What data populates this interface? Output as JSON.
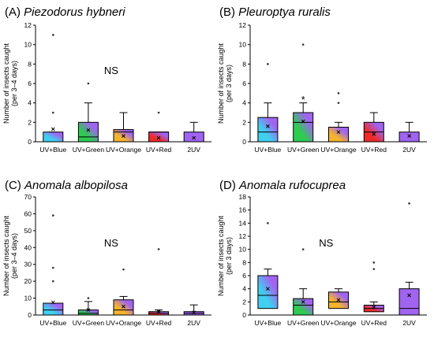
{
  "chart_data": [
    {
      "type": "box",
      "panel": "(A)",
      "title": "Piezodorus hybneri",
      "ylabel": [
        "Number of insects caught",
        "(per 3–4 days)"
      ],
      "ylim": [
        0,
        12
      ],
      "yticks": [
        0,
        2,
        4,
        6,
        8,
        10,
        12
      ],
      "annotation": "NS",
      "categories": [
        "UV+Blue",
        "UV+Green",
        "UV+Orange",
        "UV+Red",
        "2UV"
      ],
      "boxes": [
        {
          "q1": 0,
          "median": 0,
          "q3": 1,
          "whisker_low": 0,
          "whisker_high": 1,
          "mean": 1.3,
          "outliers": [
            11,
            3
          ],
          "colors": [
            "#3fd0f0",
            "#a064f0"
          ]
        },
        {
          "q1": 0,
          "median": 0.5,
          "q3": 2,
          "whisker_low": 0,
          "whisker_high": 4,
          "mean": 1.2,
          "outliers": [
            6
          ],
          "colors": [
            "#2ccc50",
            "#a064f0"
          ]
        },
        {
          "q1": 0,
          "median": 1,
          "q3": 1.25,
          "whisker_low": 0,
          "whisker_high": 3,
          "mean": 0.6,
          "outliers": [],
          "colors": [
            "#f5b42c",
            "#a064f0"
          ]
        },
        {
          "q1": 0,
          "median": 1,
          "q3": 1,
          "whisker_low": 0,
          "whisker_high": 1,
          "mean": 0.4,
          "outliers": [
            3
          ],
          "colors": [
            "#ee2a2a",
            "#a064f0"
          ]
        },
        {
          "q1": 0,
          "median": 0,
          "q3": 1,
          "whisker_low": 0,
          "whisker_high": 2,
          "mean": 0.4,
          "outliers": [],
          "colors": [
            "#a064f0",
            "#a064f0"
          ]
        }
      ]
    },
    {
      "type": "box",
      "panel": "(B)",
      "title": "Pleuroptya ruralis",
      "ylabel": [
        "Number of insects caught",
        "(per 3 days)"
      ],
      "ylim": [
        0,
        12
      ],
      "yticks": [
        0,
        2,
        4,
        6,
        8,
        10,
        12
      ],
      "annotation": "*",
      "categories": [
        "UV+Blue",
        "UV+Green",
        "UV+Orange",
        "UV+Red",
        "2UV"
      ],
      "boxes": [
        {
          "q1": 0,
          "median": 1,
          "q3": 2.5,
          "whisker_low": 0,
          "whisker_high": 4,
          "mean": 1.6,
          "outliers": [
            8
          ],
          "colors": [
            "#3fd0f0",
            "#a064f0"
          ]
        },
        {
          "q1": 0,
          "median": 2,
          "q3": 3,
          "whisker_low": 0,
          "whisker_high": 4,
          "mean": 2.1,
          "outliers": [
            10
          ],
          "colors": [
            "#2ccc50",
            "#a064f0"
          ]
        },
        {
          "q1": 0,
          "median": 1.5,
          "q3": 1.5,
          "whisker_low": 0,
          "whisker_high": 2,
          "mean": 1.0,
          "outliers": [
            5,
            4
          ],
          "colors": [
            "#f5b42c",
            "#a064f0"
          ]
        },
        {
          "q1": 0,
          "median": 1,
          "q3": 2,
          "whisker_low": 0,
          "whisker_high": 3,
          "mean": 0.8,
          "outliers": [],
          "colors": [
            "#ee2a2a",
            "#a064f0"
          ]
        },
        {
          "q1": 0,
          "median": 0,
          "q3": 1,
          "whisker_low": 0,
          "whisker_high": 2,
          "mean": 0.6,
          "outliers": [],
          "colors": [
            "#a064f0",
            "#a064f0"
          ]
        }
      ]
    },
    {
      "type": "box",
      "panel": "(C)",
      "title": "Anomala albopilosa",
      "ylabel": [
        "Number of insects caught",
        "(per 3–4 days)"
      ],
      "ylim": [
        0,
        70
      ],
      "yticks": [
        0,
        10,
        20,
        30,
        40,
        50,
        60,
        70
      ],
      "annotation": "NS",
      "categories": [
        "UV+Blue",
        "UV+Green",
        "UV+Orange",
        "UV+Red",
        "2UV"
      ],
      "boxes": [
        {
          "q1": 0,
          "median": 3,
          "q3": 7,
          "whisker_low": 0,
          "whisker_high": 7,
          "mean": 7.5,
          "outliers": [
            59,
            28,
            20
          ],
          "colors": [
            "#3fd0f0",
            "#a064f0"
          ]
        },
        {
          "q1": 0,
          "median": 1,
          "q3": 3,
          "whisker_low": 0,
          "whisker_high": 8,
          "mean": 3.0,
          "outliers": [
            10
          ],
          "colors": [
            "#2ccc50",
            "#a064f0"
          ]
        },
        {
          "q1": 0,
          "median": 3,
          "q3": 9,
          "whisker_low": 0,
          "whisker_high": 11,
          "mean": 5.0,
          "outliers": [
            27
          ],
          "colors": [
            "#f5b42c",
            "#a064f0"
          ]
        },
        {
          "q1": 0,
          "median": 1,
          "q3": 2,
          "whisker_low": 0,
          "whisker_high": 3,
          "mean": 2.0,
          "outliers": [
            39
          ],
          "colors": [
            "#ee2a2a",
            "#a064f0"
          ]
        },
        {
          "q1": 0,
          "median": 1,
          "q3": 2,
          "whisker_low": 0,
          "whisker_high": 6,
          "mean": 1.5,
          "outliers": [],
          "colors": [
            "#a064f0",
            "#a064f0"
          ]
        }
      ]
    },
    {
      "type": "box",
      "panel": "(D)",
      "title": "Anomala rufocuprea",
      "ylabel": [
        "Number of insects caught",
        "(per 3 days)"
      ],
      "ylim": [
        0,
        18
      ],
      "yticks": [
        0,
        2,
        4,
        6,
        8,
        10,
        12,
        14,
        16,
        18
      ],
      "annotation": "NS",
      "categories": [
        "UV+Blue",
        "UV+Green",
        "UV+Orange",
        "UV+Red",
        "2UV"
      ],
      "boxes": [
        {
          "q1": 1,
          "median": 3,
          "q3": 6,
          "whisker_low": 0,
          "whisker_high": 7,
          "mean": 4.0,
          "outliers": [
            14
          ],
          "colors": [
            "#3fd0f0",
            "#a064f0"
          ]
        },
        {
          "q1": 0,
          "median": 1.5,
          "q3": 2.5,
          "whisker_low": 0,
          "whisker_high": 4,
          "mean": 2.0,
          "outliers": [
            10
          ],
          "colors": [
            "#2ccc50",
            "#a064f0"
          ]
        },
        {
          "q1": 1,
          "median": 2,
          "q3": 3.5,
          "whisker_low": 0,
          "whisker_high": 4,
          "mean": 2.3,
          "outliers": [],
          "colors": [
            "#f5b42c",
            "#a064f0"
          ]
        },
        {
          "q1": 0.5,
          "median": 1,
          "q3": 1.5,
          "whisker_low": 0,
          "whisker_high": 2,
          "mean": 1.2,
          "outliers": [
            8,
            7
          ],
          "colors": [
            "#ee2a2a",
            "#a064f0"
          ]
        },
        {
          "q1": 0,
          "median": 1,
          "q3": 4,
          "whisker_low": 0,
          "whisker_high": 5,
          "mean": 3.0,
          "outliers": [
            17
          ],
          "colors": [
            "#a064f0",
            "#a064f0"
          ]
        }
      ]
    }
  ]
}
